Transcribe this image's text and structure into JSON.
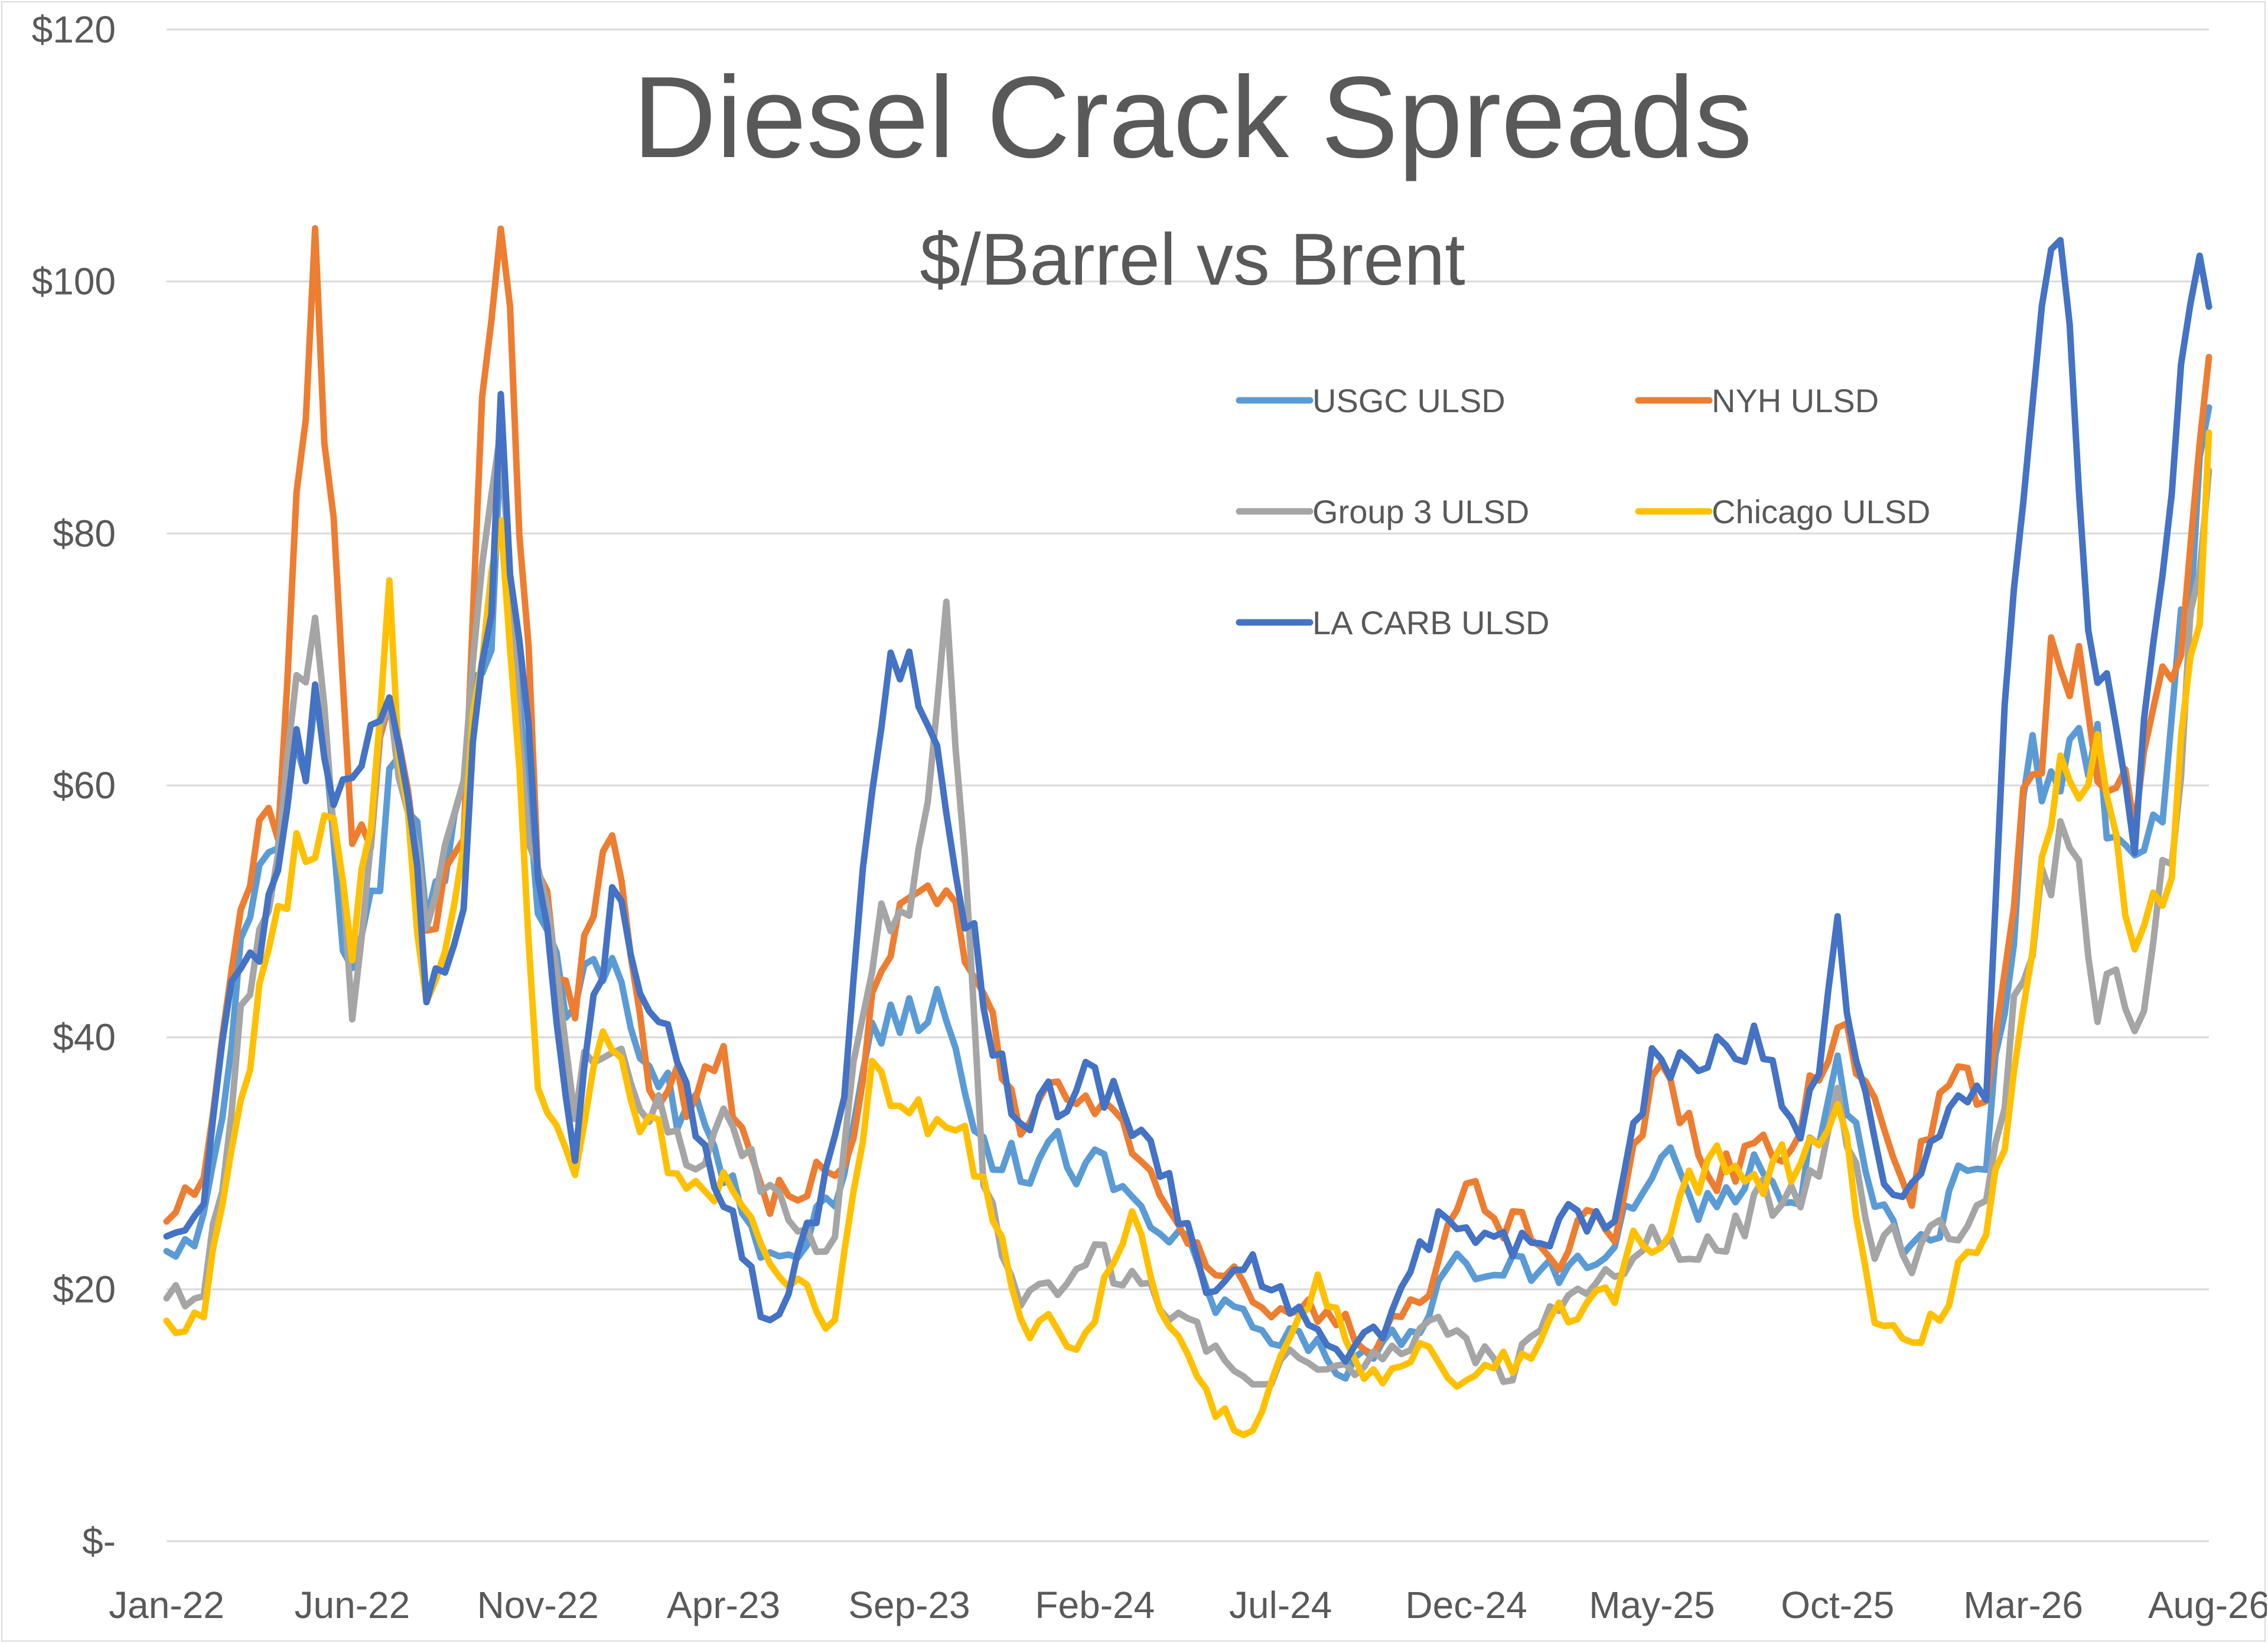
{
  "chart_data": {
    "type": "line",
    "title": "Diesel Crack Spreads",
    "subtitle": "$/Barrel vs Brent",
    "ylim": [
      0,
      120
    ],
    "y_tick_values": [
      0,
      20,
      40,
      60,
      80,
      100,
      120
    ],
    "y_tick_labels": [
      "$-",
      "$20",
      "$40",
      "$60",
      "$80",
      "$100",
      "$120"
    ],
    "x_tick_labels": [
      "Jan-22",
      "Jun-22",
      "Nov-22",
      "Apr-23",
      "Sep-23",
      "Feb-24",
      "Jul-24",
      "Dec-24",
      "May-25",
      "Oct-25",
      "Mar-26",
      "Aug-26"
    ],
    "grid": "horizontal",
    "legend_position": "top-right",
    "x_start": "2022-01",
    "x_end": "2026-08",
    "series": [
      {
        "name": "USGC ULSD",
        "color": "#5B9BD5",
        "points": [
          [
            "2022-01",
            22
          ],
          [
            "2022-02",
            25
          ],
          [
            "2022-03",
            45
          ],
          [
            "2022-04",
            55
          ],
          [
            "2022-05",
            68
          ],
          [
            "2022-06",
            45
          ],
          [
            "2022-07",
            60
          ],
          [
            "2022-08",
            48
          ],
          [
            "2022-09",
            55
          ],
          [
            "2022-10",
            85
          ],
          [
            "2022-11",
            50
          ],
          [
            "2022-12",
            40
          ],
          [
            "2023-01",
            45
          ],
          [
            "2023-02",
            38
          ],
          [
            "2023-03",
            33
          ],
          [
            "2023-04",
            30
          ],
          [
            "2023-05",
            25
          ],
          [
            "2023-06",
            24
          ],
          [
            "2023-07",
            27
          ],
          [
            "2023-08",
            40
          ],
          [
            "2023-09",
            45
          ],
          [
            "2023-10",
            42
          ],
          [
            "2023-11",
            35
          ],
          [
            "2023-12",
            30
          ],
          [
            "2024-01",
            29
          ],
          [
            "2024-02",
            32
          ],
          [
            "2024-03",
            28
          ],
          [
            "2024-04",
            26
          ],
          [
            "2024-05",
            20
          ],
          [
            "2024-06",
            17
          ],
          [
            "2024-07",
            17
          ],
          [
            "2024-08",
            16
          ],
          [
            "2024-09",
            14
          ],
          [
            "2024-10",
            15
          ],
          [
            "2024-11",
            19
          ],
          [
            "2024-12",
            23
          ],
          [
            "2025-01",
            22
          ],
          [
            "2025-02",
            20
          ],
          [
            "2025-03",
            21
          ],
          [
            "2025-04",
            22
          ],
          [
            "2025-05",
            30
          ],
          [
            "2025-06",
            28
          ],
          [
            "2025-07",
            27
          ],
          [
            "2025-08",
            29
          ],
          [
            "2025-09",
            28
          ],
          [
            "2025-10",
            38
          ],
          [
            "2025-11",
            25
          ],
          [
            "2025-12",
            23
          ],
          [
            "2026-01",
            27
          ],
          [
            "2026-02",
            30
          ],
          [
            "2026-03",
            58
          ],
          [
            "2026-04",
            62
          ],
          [
            "2026-05",
            60
          ],
          [
            "2026-06",
            50
          ],
          [
            "2026-07",
            62
          ],
          [
            "2026-08",
            90
          ]
        ]
      },
      {
        "name": "NYH ULSD",
        "color": "#ED7D31",
        "points": [
          [
            "2022-01",
            24
          ],
          [
            "2022-02",
            28
          ],
          [
            "2022-03",
            50
          ],
          [
            "2022-04",
            58
          ],
          [
            "2022-05",
            110
          ],
          [
            "2022-06",
            55
          ],
          [
            "2022-07",
            65
          ],
          [
            "2022-08",
            48
          ],
          [
            "2022-09",
            58
          ],
          [
            "2022-10",
            110
          ],
          [
            "2022-11",
            55
          ],
          [
            "2022-12",
            42
          ],
          [
            "2023-01",
            55
          ],
          [
            "2023-02",
            40
          ],
          [
            "2023-03",
            35
          ],
          [
            "2023-04",
            38
          ],
          [
            "2023-05",
            28
          ],
          [
            "2023-06",
            27
          ],
          [
            "2023-07",
            29
          ],
          [
            "2023-08",
            42
          ],
          [
            "2023-09",
            50
          ],
          [
            "2023-10",
            48
          ],
          [
            "2023-11",
            40
          ],
          [
            "2023-12",
            33
          ],
          [
            "2024-01",
            33
          ],
          [
            "2024-02",
            36
          ],
          [
            "2024-03",
            32
          ],
          [
            "2024-04",
            28
          ],
          [
            "2024-05",
            22
          ],
          [
            "2024-06",
            20
          ],
          [
            "2024-07",
            19
          ],
          [
            "2024-08",
            18
          ],
          [
            "2024-09",
            16
          ],
          [
            "2024-10",
            17
          ],
          [
            "2024-11",
            22
          ],
          [
            "2024-12",
            30
          ],
          [
            "2025-01",
            26
          ],
          [
            "2025-02",
            23
          ],
          [
            "2025-03",
            24
          ],
          [
            "2025-04",
            25
          ],
          [
            "2025-05",
            35
          ],
          [
            "2025-06",
            32
          ],
          [
            "2025-07",
            30
          ],
          [
            "2025-08",
            32
          ],
          [
            "2025-09",
            31
          ],
          [
            "2025-10",
            45
          ],
          [
            "2025-11",
            32
          ],
          [
            "2025-12",
            30
          ],
          [
            "2026-01",
            40
          ],
          [
            "2026-02",
            38
          ],
          [
            "2026-03",
            65
          ],
          [
            "2026-04",
            75
          ],
          [
            "2026-05",
            65
          ],
          [
            "2026-06",
            55
          ],
          [
            "2026-07",
            72
          ],
          [
            "2026-08",
            94
          ]
        ]
      },
      {
        "name": "Group 3 ULSD",
        "color": "#A5A5A5",
        "points": [
          [
            "2022-01",
            18
          ],
          [
            "2022-02",
            20
          ],
          [
            "2022-03",
            40
          ],
          [
            "2022-04",
            50
          ],
          [
            "2022-05",
            78
          ],
          [
            "2022-06",
            42
          ],
          [
            "2022-07",
            68
          ],
          [
            "2022-08",
            45
          ],
          [
            "2022-09",
            55
          ],
          [
            "2022-10",
            88
          ],
          [
            "2022-11",
            55
          ],
          [
            "2022-12",
            38
          ],
          [
            "2023-01",
            42
          ],
          [
            "2023-02",
            35
          ],
          [
            "2023-03",
            30
          ],
          [
            "2023-04",
            37
          ],
          [
            "2023-05",
            30
          ],
          [
            "2023-06",
            24
          ],
          [
            "2023-07",
            25
          ],
          [
            "2023-08",
            48
          ],
          [
            "2023-09",
            50
          ],
          [
            "2023-10",
            80
          ],
          [
            "2023-11",
            30
          ],
          [
            "2023-12",
            20
          ],
          [
            "2024-01",
            18
          ],
          [
            "2024-02",
            22
          ],
          [
            "2024-03",
            20
          ],
          [
            "2024-04",
            18
          ],
          [
            "2024-05",
            14
          ],
          [
            "2024-06",
            15
          ],
          [
            "2024-07",
            14
          ],
          [
            "2024-08",
            13
          ],
          [
            "2024-09",
            13
          ],
          [
            "2024-10",
            14
          ],
          [
            "2024-11",
            16
          ],
          [
            "2024-12",
            15
          ],
          [
            "2025-01",
            14
          ],
          [
            "2025-02",
            18
          ],
          [
            "2025-03",
            22
          ],
          [
            "2025-04",
            20
          ],
          [
            "2025-05",
            26
          ],
          [
            "2025-06",
            24
          ],
          [
            "2025-07",
            26
          ],
          [
            "2025-08",
            27
          ],
          [
            "2025-09",
            27
          ],
          [
            "2025-10",
            35
          ],
          [
            "2025-11",
            24
          ],
          [
            "2025-12",
            22
          ],
          [
            "2026-01",
            24
          ],
          [
            "2026-02",
            28
          ],
          [
            "2026-03",
            48
          ],
          [
            "2026-04",
            55
          ],
          [
            "2026-05",
            42
          ],
          [
            "2026-06",
            45
          ],
          [
            "2026-07",
            55
          ],
          [
            "2026-08",
            85
          ]
        ]
      },
      {
        "name": "Chicago ULSD",
        "color": "#FFC000",
        "points": [
          [
            "2022-01",
            16
          ],
          [
            "2022-02",
            19
          ],
          [
            "2022-03",
            35
          ],
          [
            "2022-04",
            48
          ],
          [
            "2022-05",
            60
          ],
          [
            "2022-06",
            50
          ],
          [
            "2022-07",
            72
          ],
          [
            "2022-08",
            40
          ],
          [
            "2022-09",
            60
          ],
          [
            "2022-10",
            78
          ],
          [
            "2022-11",
            35
          ],
          [
            "2022-12",
            28
          ],
          [
            "2023-01",
            40
          ],
          [
            "2023-02",
            33
          ],
          [
            "2023-03",
            28
          ],
          [
            "2023-04",
            28
          ],
          [
            "2023-05",
            22
          ],
          [
            "2023-06",
            20
          ],
          [
            "2023-07",
            18
          ],
          [
            "2023-08",
            40
          ],
          [
            "2023-09",
            36
          ],
          [
            "2023-10",
            30
          ],
          [
            "2023-11",
            28
          ],
          [
            "2023-12",
            18
          ],
          [
            "2024-01",
            16
          ],
          [
            "2024-02",
            18
          ],
          [
            "2024-03",
            25
          ],
          [
            "2024-04",
            18
          ],
          [
            "2024-05",
            13
          ],
          [
            "2024-06",
            8
          ],
          [
            "2024-07",
            16
          ],
          [
            "2024-08",
            20
          ],
          [
            "2024-09",
            14
          ],
          [
            "2024-10",
            13
          ],
          [
            "2024-11",
            15
          ],
          [
            "2024-12",
            12
          ],
          [
            "2025-01",
            14
          ],
          [
            "2025-02",
            15
          ],
          [
            "2025-03",
            18
          ],
          [
            "2025-04",
            20
          ],
          [
            "2025-05",
            25
          ],
          [
            "2025-06",
            27
          ],
          [
            "2025-07",
            29
          ],
          [
            "2025-08",
            30
          ],
          [
            "2025-09",
            30
          ],
          [
            "2025-10",
            38
          ],
          [
            "2025-11",
            18
          ],
          [
            "2025-12",
            16
          ],
          [
            "2026-01",
            20
          ],
          [
            "2026-02",
            26
          ],
          [
            "2026-03",
            42
          ],
          [
            "2026-04",
            60
          ],
          [
            "2026-05",
            68
          ],
          [
            "2026-06",
            48
          ],
          [
            "2026-07",
            55
          ],
          [
            "2026-08",
            88
          ]
        ]
      },
      {
        "name": "LA CARB ULSD",
        "color": "#4472C4",
        "points": [
          [
            "2022-01",
            26
          ],
          [
            "2022-02",
            25
          ],
          [
            "2022-03",
            48
          ],
          [
            "2022-04",
            55
          ],
          [
            "2022-05",
            65
          ],
          [
            "2022-06",
            58
          ],
          [
            "2022-07",
            65
          ],
          [
            "2022-08",
            42
          ],
          [
            "2022-09",
            48
          ],
          [
            "2022-10",
            90
          ],
          [
            "2022-11",
            55
          ],
          [
            "2022-12",
            35
          ],
          [
            "2023-01",
            50
          ],
          [
            "2023-02",
            45
          ],
          [
            "2023-03",
            35
          ],
          [
            "2023-04",
            27
          ],
          [
            "2023-05",
            18
          ],
          [
            "2023-06",
            22
          ],
          [
            "2023-07",
            30
          ],
          [
            "2023-08",
            55
          ],
          [
            "2023-09",
            72
          ],
          [
            "2023-10",
            58
          ],
          [
            "2023-11",
            45
          ],
          [
            "2023-12",
            35
          ],
          [
            "2024-01",
            33
          ],
          [
            "2024-02",
            40
          ],
          [
            "2024-03",
            32
          ],
          [
            "2024-04",
            30
          ],
          [
            "2024-05",
            20
          ],
          [
            "2024-06",
            22
          ],
          [
            "2024-07",
            20
          ],
          [
            "2024-08",
            18
          ],
          [
            "2024-09",
            16
          ],
          [
            "2024-10",
            18
          ],
          [
            "2024-11",
            24
          ],
          [
            "2024-12",
            28
          ],
          [
            "2025-01",
            25
          ],
          [
            "2025-02",
            24
          ],
          [
            "2025-03",
            25
          ],
          [
            "2025-04",
            26
          ],
          [
            "2025-05",
            40
          ],
          [
            "2025-06",
            38
          ],
          [
            "2025-07",
            40
          ],
          [
            "2025-08",
            38
          ],
          [
            "2025-09",
            36
          ],
          [
            "2025-10",
            48
          ],
          [
            "2025-11",
            30
          ],
          [
            "2025-12",
            28
          ],
          [
            "2026-01",
            35
          ],
          [
            "2026-02",
            36
          ],
          [
            "2026-03",
            85
          ],
          [
            "2026-04",
            100
          ],
          [
            "2026-05",
            70
          ],
          [
            "2026-06",
            58
          ],
          [
            "2026-07",
            82
          ],
          [
            "2026-08",
            98
          ]
        ]
      }
    ]
  }
}
